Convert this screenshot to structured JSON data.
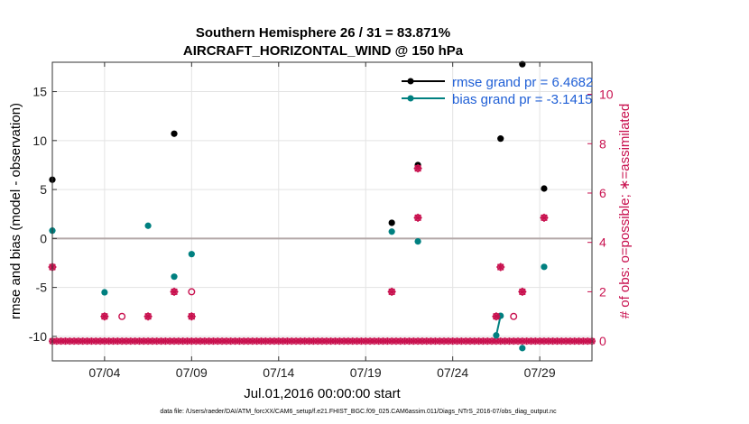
{
  "chart_data": {
    "type": "scatter",
    "title": "Southern Hemisphere 26 / 31 = 83.871%",
    "subtitle": "AIRCRAFT_HORIZONTAL_WIND @ 150 hPa",
    "xlabel": "Jul.01,2016 00:00:00 start",
    "ylabel": "rmse and bias (model - observation)",
    "y2label": "# of obs: o=possible; ∗=assimilated",
    "x_unit": "day",
    "xlim": [
      1.0,
      32.0
    ],
    "ylim": [
      -12.5,
      18.0
    ],
    "y2lim": [
      -0.8,
      11.3
    ],
    "x_ticks": [
      4,
      9,
      14,
      19,
      24,
      29
    ],
    "x_tick_labels": [
      "07/04",
      "07/09",
      "07/14",
      "07/19",
      "07/24",
      "07/29"
    ],
    "y_ticks": [
      -10,
      -5,
      0,
      5,
      10,
      15
    ],
    "y_tick_labels": [
      "-10",
      "-5",
      "0",
      "5",
      "10",
      "15"
    ],
    "y2_ticks": [
      0,
      2,
      4,
      6,
      8,
      10
    ],
    "y2_tick_labels": [
      "0",
      "2",
      "4",
      "6",
      "8",
      "10"
    ],
    "grid": true,
    "zero_line": 0,
    "legend_position": "top-right",
    "series": [
      {
        "name": "rmse grand pr = 6.4682",
        "axis": "left",
        "color": "#000000",
        "marker": "filled-circle",
        "points": [
          [
            1.0,
            6.0
          ],
          [
            8.0,
            10.7
          ],
          [
            20.5,
            1.6
          ],
          [
            22.0,
            7.5
          ],
          [
            26.75,
            10.2
          ],
          [
            28.0,
            17.8
          ],
          [
            29.25,
            5.1
          ]
        ],
        "connected_pairs": []
      },
      {
        "name": "bias grand pr = -3.1415",
        "axis": "left",
        "color": "#008080",
        "marker": "filled-circle",
        "points": [
          [
            1.0,
            0.8
          ],
          [
            4.0,
            -5.5
          ],
          [
            6.5,
            1.3
          ],
          [
            8.0,
            -3.9
          ],
          [
            9.0,
            -1.6
          ],
          [
            20.5,
            0.7
          ],
          [
            22.0,
            -0.3
          ],
          [
            26.5,
            -9.9
          ],
          [
            26.75,
            -7.9
          ],
          [
            28.0,
            -11.2
          ],
          [
            29.25,
            -2.9
          ]
        ],
        "connected_pairs": [
          [
            26.5,
            26.75
          ]
        ]
      },
      {
        "name": "obs possible",
        "axis": "right",
        "color": "#c8104e",
        "marker": "open-circle",
        "points": [
          [
            1.0,
            3
          ],
          [
            4.0,
            1
          ],
          [
            5.0,
            1
          ],
          [
            6.5,
            1
          ],
          [
            8.0,
            2
          ],
          [
            9.0,
            2
          ],
          [
            9.0,
            1
          ],
          [
            20.5,
            2
          ],
          [
            22.0,
            7
          ],
          [
            22.0,
            5
          ],
          [
            26.5,
            1
          ],
          [
            26.75,
            3
          ],
          [
            27.5,
            1
          ],
          [
            28.0,
            2
          ],
          [
            29.25,
            5
          ]
        ]
      },
      {
        "name": "obs assimilated",
        "axis": "right",
        "color": "#c8104e",
        "marker": "asterisk",
        "points": [
          [
            1.0,
            3
          ],
          [
            4.0,
            1
          ],
          [
            6.5,
            1
          ],
          [
            8.0,
            2
          ],
          [
            9.0,
            1
          ],
          [
            20.5,
            2
          ],
          [
            22.0,
            7
          ],
          [
            22.0,
            5
          ],
          [
            26.5,
            1
          ],
          [
            26.75,
            3
          ],
          [
            28.0,
            2
          ],
          [
            29.25,
            5
          ]
        ]
      }
    ],
    "zero_obs_days_start": 1.0,
    "zero_obs_days_end": 32.0,
    "zero_obs_step": 0.25
  },
  "footer": "data file: /Users/raeder/DAI/ATM_forcXX/CAM6_setup/f.e21.FHIST_BGC.f09_025.CAM6assim.011/Diags_NTrS_2016-07/obs_diag_output.nc"
}
